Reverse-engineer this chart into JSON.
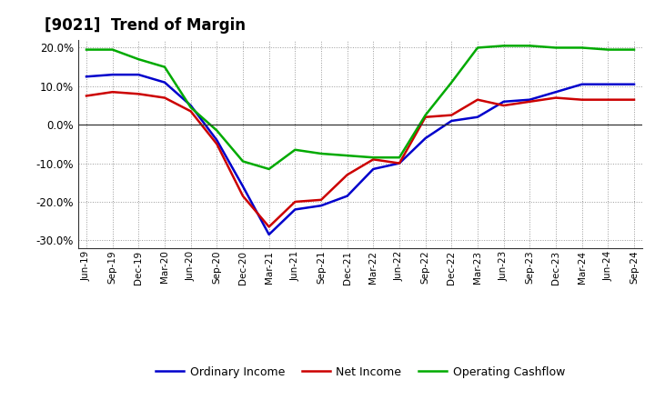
{
  "title": "[9021]  Trend of Margin",
  "xlabels": [
    "Jun-19",
    "Sep-19",
    "Dec-19",
    "Mar-20",
    "Jun-20",
    "Sep-20",
    "Dec-20",
    "Mar-21",
    "Jun-21",
    "Sep-21",
    "Dec-21",
    "Mar-22",
    "Jun-22",
    "Sep-22",
    "Dec-22",
    "Mar-23",
    "Jun-23",
    "Sep-23",
    "Dec-23",
    "Mar-24",
    "Jun-24",
    "Sep-24"
  ],
  "ordinary_income": [
    12.5,
    13.0,
    13.0,
    11.0,
    5.0,
    -4.0,
    -16.0,
    -28.5,
    -22.0,
    -21.0,
    -18.5,
    -11.5,
    -10.0,
    -3.5,
    1.0,
    2.0,
    6.0,
    6.5,
    8.5,
    10.5,
    10.5,
    10.5
  ],
  "net_income": [
    7.5,
    8.5,
    8.0,
    7.0,
    3.5,
    -5.0,
    -18.5,
    -26.5,
    -20.0,
    -19.5,
    -13.0,
    -9.0,
    -10.0,
    2.0,
    2.5,
    6.5,
    5.0,
    6.0,
    7.0,
    6.5,
    6.5,
    6.5
  ],
  "operating_cf": [
    19.5,
    19.5,
    17.0,
    15.0,
    4.5,
    -1.5,
    -9.5,
    -11.5,
    -6.5,
    -7.5,
    -8.0,
    -8.5,
    -8.5,
    2.5,
    11.0,
    20.0,
    20.5,
    20.5,
    20.0,
    20.0,
    19.5,
    19.5
  ],
  "ylim": [
    -32,
    22
  ],
  "yticks": [
    -30,
    -20,
    -10,
    0,
    10,
    20
  ],
  "line_colors": {
    "ordinary_income": "#0000cc",
    "net_income": "#cc0000",
    "operating_cf": "#00aa00"
  },
  "line_width": 1.8,
  "background_color": "#ffffff",
  "plot_bg_color": "#ffffff",
  "grid_color": "#999999",
  "legend_labels": [
    "Ordinary Income",
    "Net Income",
    "Operating Cashflow"
  ]
}
